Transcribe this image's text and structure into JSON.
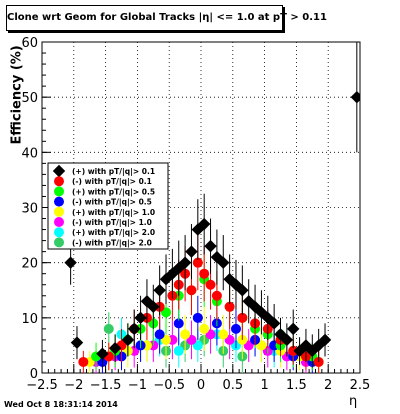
{
  "title": "Clone wrt Geom for Global Tracks |η| <= 1.0 at pT > 0.11",
  "timestamp": "Wed Oct  8 18:31:14 2014",
  "colors": {
    "black": "#000000",
    "red": "#ff0000",
    "green": "#00ff00",
    "blue": "#0000ff",
    "yellow": "#ffff00",
    "magenta": "#ff00ff",
    "cyan": "#00ffff",
    "seagreen": "#33cc66"
  },
  "chart_data": {
    "type": "scatter",
    "title": "Clone wrt Geom for Global Tracks |η| <= 1.0 at pT > 0.11",
    "xlabel": "η",
    "ylabel": "Efficiency (%)",
    "xlim": [
      -2.5,
      2.5
    ],
    "ylim": [
      0,
      60
    ],
    "xticks": [
      "−2.5",
      "−2",
      "−1.5",
      "−1",
      "−0.5",
      "0",
      "0.5",
      "1",
      "1.5",
      "2",
      "2.5"
    ],
    "yticks": [
      "0",
      "10",
      "20",
      "30",
      "40",
      "50",
      "60"
    ],
    "grid": true,
    "legend_position": "left-middle",
    "legend": [
      "(+) with pT/|q|> 0.1",
      "(-) with pT/|q|> 0.1",
      "(+) with pT/|q|> 0.5",
      "(-) with pT/|q|> 0.5",
      "(+) with pT/|q|> 1.0",
      "(-) with pT/|q|> 1.0",
      "(+) with pT/|q|> 2.0",
      "(-) with pT/|q|> 2.0"
    ],
    "series": [
      {
        "name": "(+) with pT/|q|> 0.1",
        "color": "#000000",
        "x": [
          -2.05,
          -1.95,
          -1.55,
          -1.35,
          -1.15,
          -1.05,
          -0.95,
          -0.85,
          -0.75,
          -0.65,
          -0.55,
          -0.45,
          -0.35,
          -0.25,
          -0.15,
          -0.05,
          0.05,
          0.15,
          0.25,
          0.35,
          0.45,
          0.55,
          0.65,
          0.75,
          0.85,
          0.95,
          1.05,
          1.15,
          1.25,
          1.35,
          1.45,
          1.55,
          1.65,
          1.75,
          1.85,
          1.95,
          2.45
        ],
        "y": [
          20,
          5.5,
          3.5,
          4.5,
          6,
          8,
          10,
          13,
          12,
          15,
          17,
          18,
          19,
          20,
          22,
          26,
          27,
          23,
          21,
          20,
          17,
          16,
          15,
          13,
          12,
          11,
          10,
          9,
          7,
          6,
          8,
          4,
          5,
          4,
          5,
          6,
          50
        ],
        "err": [
          4,
          3,
          2.5,
          2.5,
          3,
          3.5,
          4,
          4,
          4,
          4.5,
          4.5,
          4.5,
          5,
          5,
          5,
          5.5,
          5.5,
          5,
          5,
          5,
          4.5,
          4.5,
          4.5,
          4,
          4,
          4,
          4,
          3.5,
          3,
          3,
          3.5,
          2.5,
          3,
          3,
          3,
          3,
          10
        ]
      },
      {
        "name": "(-) with pT/|q|> 0.1",
        "color": "#ff0000",
        "x": [
          -1.85,
          -1.45,
          -1.25,
          -1.05,
          -0.85,
          -0.65,
          -0.45,
          -0.35,
          -0.25,
          -0.15,
          -0.05,
          0.05,
          0.15,
          0.25,
          0.45,
          0.65,
          0.85,
          1.05,
          1.25,
          1.45,
          1.65,
          1.85
        ],
        "y": [
          2,
          3,
          5,
          8,
          10,
          12,
          14,
          16,
          18,
          15,
          20,
          18,
          16,
          14,
          12,
          10,
          9,
          8,
          6,
          4,
          3,
          2
        ],
        "err": [
          2,
          2.5,
          3,
          3.5,
          4,
          4,
          4.5,
          4.5,
          5,
          4.5,
          5,
          5,
          4.5,
          4.5,
          4,
          4,
          4,
          3.5,
          3,
          2.5,
          2.5,
          2
        ]
      },
      {
        "name": "(+) with pT/|q|> 0.5",
        "color": "#00ff00",
        "x": [
          -1.65,
          -1.35,
          -1.15,
          -0.95,
          -0.75,
          -0.55,
          -0.35,
          -0.15,
          0.05,
          0.25,
          0.45,
          0.65,
          0.85,
          1.05,
          1.25,
          1.45,
          1.75
        ],
        "y": [
          3,
          4,
          6,
          8,
          9,
          11,
          14,
          15,
          17,
          13,
          12,
          10,
          8,
          7,
          5,
          4,
          3
        ],
        "err": [
          2.5,
          3,
          3,
          3.5,
          4,
          4,
          4.5,
          4.5,
          5,
          4.5,
          4,
          4,
          3.5,
          3.5,
          3,
          3,
          2.5
        ]
      },
      {
        "name": "(-) with pT/|q|> 0.5",
        "color": "#0000ff",
        "x": [
          -1.55,
          -1.25,
          -0.95,
          -0.65,
          -0.35,
          -0.05,
          0.25,
          0.55,
          0.85,
          1.15,
          1.45,
          1.75
        ],
        "y": [
          2,
          3,
          5,
          7,
          9,
          10,
          9,
          8,
          6,
          5,
          3,
          2
        ],
        "err": [
          2,
          2.5,
          3,
          3.5,
          4,
          4,
          4,
          3.5,
          3,
          3,
          2.5,
          2
        ]
      },
      {
        "name": "(+) with pT/|q|> 1.0",
        "color": "#ffff00",
        "x": [
          -1.75,
          -1.45,
          -1.15,
          -0.85,
          -0.55,
          -0.25,
          0.05,
          0.35,
          0.65,
          0.95,
          1.25,
          1.55,
          1.85
        ],
        "y": [
          2,
          3,
          4,
          5,
          6,
          7,
          8,
          7,
          6,
          5,
          4,
          3,
          2
        ],
        "err": [
          2,
          2.5,
          3,
          3,
          3.5,
          3.5,
          4,
          3.5,
          3.5,
          3,
          3,
          2.5,
          2
        ]
      },
      {
        "name": "(-) with pT/|q|> 1.0",
        "color": "#ff00ff",
        "x": [
          -1.65,
          -1.35,
          -1.05,
          -0.75,
          -0.45,
          -0.15,
          0.15,
          0.45,
          0.75,
          1.05,
          1.35,
          1.65
        ],
        "y": [
          2,
          3,
          4,
          5,
          6,
          6,
          7,
          6,
          5,
          4,
          3,
          2
        ],
        "err": [
          2,
          2.5,
          3,
          3,
          3.5,
          3.5,
          3.5,
          3.5,
          3,
          3,
          2.5,
          2
        ]
      },
      {
        "name": "(+) with pT/|q|> 2.0",
        "color": "#00ffff",
        "x": [
          -1.25,
          -0.95,
          -0.65,
          -0.35,
          -0.05,
          0.25,
          0.55,
          0.85,
          1.15
        ],
        "y": [
          7,
          5,
          6,
          4,
          5,
          7,
          5,
          6,
          4
        ],
        "err": [
          3,
          3,
          3,
          3,
          3,
          3,
          3,
          3,
          3
        ]
      },
      {
        "name": "(-) with pT/|q|> 2.0",
        "color": "#33cc66",
        "x": [
          -1.45,
          -1.15,
          -0.85,
          -0.55,
          -0.25,
          0.05,
          0.35,
          0.65,
          0.95,
          1.25
        ],
        "y": [
          8,
          6,
          5,
          4,
          5,
          6,
          4,
          3,
          5,
          7
        ],
        "err": [
          3,
          3,
          3,
          3,
          3,
          3,
          3,
          3,
          3,
          3
        ]
      }
    ]
  }
}
